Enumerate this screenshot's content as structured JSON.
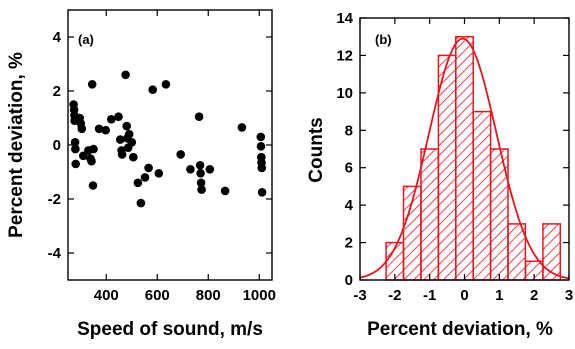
{
  "chart_data": [
    {
      "panel_label": "(a)",
      "type": "scatter",
      "xlabel": "Speed of sound, m/s",
      "ylabel": "Percent deviation, %",
      "xlim": [
        250,
        1050
      ],
      "ylim": [
        -5,
        5
      ],
      "xticks": [
        400,
        600,
        800,
        1000
      ],
      "yticks": [
        -4,
        -2,
        0,
        2,
        4
      ],
      "marker_color": "#000000",
      "points": [
        {
          "x": 272,
          "y": 1.5
        },
        {
          "x": 274,
          "y": 1.3
        },
        {
          "x": 275,
          "y": 1.1
        },
        {
          "x": 276,
          "y": 0.9
        },
        {
          "x": 278,
          "y": 0.1
        },
        {
          "x": 279,
          "y": -0.15
        },
        {
          "x": 280,
          "y": -0.7
        },
        {
          "x": 296,
          "y": 1.0
        },
        {
          "x": 300,
          "y": 0.8
        },
        {
          "x": 304,
          "y": 0.6
        },
        {
          "x": 310,
          "y": -0.4
        },
        {
          "x": 330,
          "y": -0.2
        },
        {
          "x": 338,
          "y": -0.5
        },
        {
          "x": 342,
          "y": -0.6
        },
        {
          "x": 345,
          "y": 2.25
        },
        {
          "x": 348,
          "y": -1.5
        },
        {
          "x": 350,
          "y": -0.15
        },
        {
          "x": 372,
          "y": 0.6
        },
        {
          "x": 398,
          "y": 0.55
        },
        {
          "x": 420,
          "y": 0.95
        },
        {
          "x": 448,
          "y": 1.05
        },
        {
          "x": 455,
          "y": 0.2
        },
        {
          "x": 460,
          "y": -0.2
        },
        {
          "x": 462,
          "y": -0.35
        },
        {
          "x": 476,
          "y": 2.6
        },
        {
          "x": 480,
          "y": 0.7
        },
        {
          "x": 483,
          "y": 0.25
        },
        {
          "x": 486,
          "y": -0.1
        },
        {
          "x": 490,
          "y": 0.4
        },
        {
          "x": 500,
          "y": 0.1
        },
        {
          "x": 506,
          "y": -0.45
        },
        {
          "x": 524,
          "y": -1.4
        },
        {
          "x": 536,
          "y": -2.15
        },
        {
          "x": 552,
          "y": -1.2
        },
        {
          "x": 566,
          "y": -0.85
        },
        {
          "x": 582,
          "y": 2.05
        },
        {
          "x": 606,
          "y": -1.05
        },
        {
          "x": 634,
          "y": 2.25
        },
        {
          "x": 692,
          "y": -0.35
        },
        {
          "x": 730,
          "y": -0.9
        },
        {
          "x": 764,
          "y": 1.05
        },
        {
          "x": 768,
          "y": -0.75
        },
        {
          "x": 770,
          "y": -1.05
        },
        {
          "x": 772,
          "y": -1.4
        },
        {
          "x": 774,
          "y": -1.65
        },
        {
          "x": 806,
          "y": -0.9
        },
        {
          "x": 866,
          "y": -1.7
        },
        {
          "x": 932,
          "y": 0.65
        },
        {
          "x": 1006,
          "y": 0.3
        },
        {
          "x": 1007,
          "y": -0.05
        },
        {
          "x": 1008,
          "y": -0.45
        },
        {
          "x": 1009,
          "y": -0.65
        },
        {
          "x": 1010,
          "y": -0.85
        },
        {
          "x": 1011,
          "y": -1.75
        }
      ]
    },
    {
      "panel_label": "(b)",
      "type": "bar",
      "subtype": "histogram with normal fit curve",
      "xlabel": "Percent deviation, %",
      "ylabel": "Counts",
      "xlim": [
        -3,
        3
      ],
      "ylim": [
        0,
        14
      ],
      "xticks": [
        -3,
        -2,
        -1,
        0,
        1,
        2,
        3
      ],
      "yticks": [
        0,
        2,
        4,
        6,
        8,
        10,
        12,
        14
      ],
      "color": "#e8141e",
      "bin_width": 0.5,
      "bins": [
        {
          "start": -2.25,
          "count": 2
        },
        {
          "start": -1.75,
          "count": 5
        },
        {
          "start": -1.25,
          "count": 7
        },
        {
          "start": -0.75,
          "count": 12
        },
        {
          "start": -0.25,
          "count": 13
        },
        {
          "start": 0.25,
          "count": 9
        },
        {
          "start": 0.75,
          "count": 7
        },
        {
          "start": 1.25,
          "count": 3
        },
        {
          "start": 1.75,
          "count": 1
        },
        {
          "start": 2.25,
          "count": 3
        }
      ],
      "fit": {
        "type": "normal",
        "mean": -0.05,
        "sigma": 0.97,
        "peak": 12.9
      }
    }
  ]
}
